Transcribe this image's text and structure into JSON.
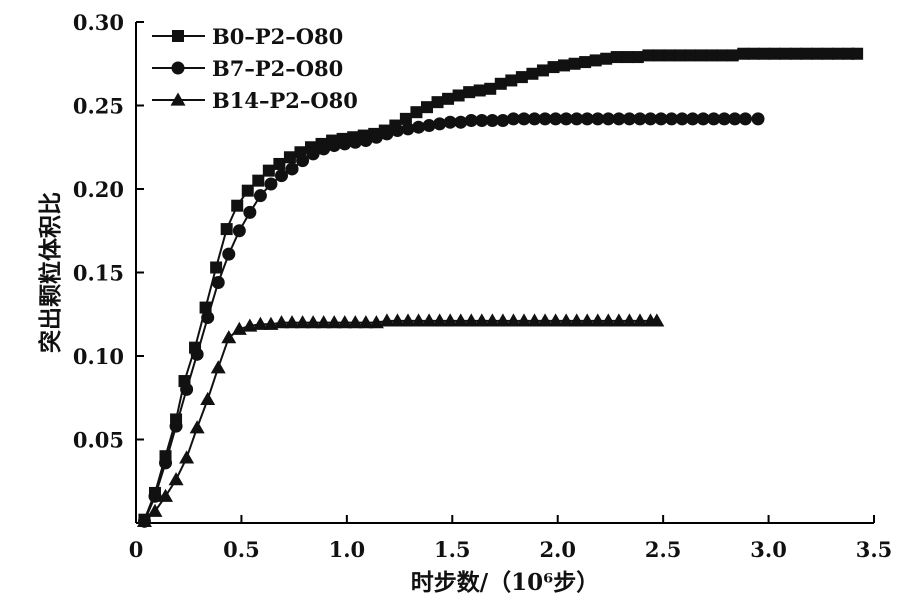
{
  "chart_data": {
    "type": "line",
    "xlabel": "时步数/（10⁶步）",
    "ylabel": "突出颗粒体积比",
    "xlim": [
      0,
      3.5
    ],
    "ylim": [
      0,
      0.3
    ],
    "xticks": [
      0,
      0.5,
      1.0,
      1.5,
      2.0,
      2.5,
      3.0,
      3.5
    ],
    "xtick_labels": [
      "0",
      "0.5",
      "1.0",
      "1.5",
      "2.0",
      "2.5",
      "3.0",
      "3.5"
    ],
    "yticks": [
      0.05,
      0.1,
      0.15,
      0.2,
      0.25,
      0.3
    ],
    "ytick_labels": [
      "0.05",
      "0.10",
      "0.15",
      "0.20",
      "0.25",
      "0.30"
    ],
    "grid": false,
    "legend_position": "top-left",
    "series": [
      {
        "name": "B0–P2–O80",
        "marker": "square",
        "x": [
          0.04,
          0.09,
          0.14,
          0.19,
          0.23,
          0.28,
          0.33,
          0.38,
          0.43,
          0.48,
          0.53,
          0.58,
          0.63,
          0.68,
          0.73,
          0.78,
          0.83,
          0.88,
          0.93,
          0.98,
          1.03,
          1.08,
          1.13,
          1.18,
          1.23,
          1.28,
          1.33,
          1.38,
          1.43,
          1.48,
          1.53,
          1.58,
          1.63,
          1.68,
          1.73,
          1.78,
          1.83,
          1.88,
          1.93,
          1.98,
          2.03,
          2.08,
          2.13,
          2.18,
          2.23,
          2.28,
          2.33,
          2.38,
          2.43,
          2.48,
          2.53,
          2.58,
          2.63,
          2.68,
          2.73,
          2.78,
          2.83,
          2.88,
          2.93,
          2.98,
          3.03,
          3.08,
          3.13,
          3.18,
          3.23,
          3.28,
          3.33,
          3.38,
          3.42
        ],
        "y": [
          0.002,
          0.018,
          0.04,
          0.062,
          0.085,
          0.105,
          0.129,
          0.153,
          0.176,
          0.19,
          0.199,
          0.205,
          0.211,
          0.215,
          0.219,
          0.222,
          0.225,
          0.227,
          0.229,
          0.23,
          0.231,
          0.232,
          0.233,
          0.235,
          0.238,
          0.242,
          0.246,
          0.249,
          0.252,
          0.254,
          0.256,
          0.258,
          0.259,
          0.26,
          0.263,
          0.265,
          0.267,
          0.269,
          0.271,
          0.273,
          0.274,
          0.275,
          0.276,
          0.277,
          0.278,
          0.279,
          0.279,
          0.279,
          0.28,
          0.28,
          0.28,
          0.28,
          0.28,
          0.28,
          0.28,
          0.28,
          0.28,
          0.281,
          0.281,
          0.281,
          0.281,
          0.281,
          0.281,
          0.281,
          0.281,
          0.281,
          0.281,
          0.281,
          0.281
        ]
      },
      {
        "name": "B7–P2–O80",
        "marker": "circle",
        "x": [
          0.04,
          0.09,
          0.14,
          0.19,
          0.24,
          0.29,
          0.34,
          0.39,
          0.44,
          0.49,
          0.54,
          0.59,
          0.64,
          0.69,
          0.74,
          0.79,
          0.84,
          0.89,
          0.94,
          0.99,
          1.04,
          1.09,
          1.14,
          1.19,
          1.24,
          1.29,
          1.34,
          1.39,
          1.44,
          1.49,
          1.54,
          1.59,
          1.64,
          1.69,
          1.74,
          1.79,
          1.84,
          1.89,
          1.94,
          1.99,
          2.04,
          2.09,
          2.14,
          2.19,
          2.24,
          2.29,
          2.34,
          2.39,
          2.44,
          2.49,
          2.54,
          2.59,
          2.64,
          2.69,
          2.74,
          2.79,
          2.84,
          2.89,
          2.95
        ],
        "y": [
          0.001,
          0.016,
          0.036,
          0.058,
          0.08,
          0.101,
          0.123,
          0.144,
          0.161,
          0.175,
          0.186,
          0.196,
          0.203,
          0.208,
          0.212,
          0.217,
          0.221,
          0.224,
          0.226,
          0.227,
          0.228,
          0.229,
          0.231,
          0.233,
          0.235,
          0.236,
          0.237,
          0.238,
          0.239,
          0.24,
          0.24,
          0.241,
          0.241,
          0.241,
          0.241,
          0.242,
          0.242,
          0.242,
          0.242,
          0.242,
          0.242,
          0.242,
          0.242,
          0.242,
          0.242,
          0.242,
          0.242,
          0.242,
          0.242,
          0.242,
          0.242,
          0.242,
          0.242,
          0.242,
          0.242,
          0.242,
          0.242,
          0.242,
          0.242
        ]
      },
      {
        "name": "B14–P2–O80",
        "marker": "triangle",
        "x": [
          0.04,
          0.09,
          0.14,
          0.19,
          0.24,
          0.29,
          0.34,
          0.39,
          0.44,
          0.49,
          0.54,
          0.59,
          0.64,
          0.69,
          0.74,
          0.79,
          0.84,
          0.89,
          0.94,
          0.99,
          1.04,
          1.09,
          1.14,
          1.19,
          1.24,
          1.29,
          1.34,
          1.39,
          1.44,
          1.49,
          1.54,
          1.59,
          1.64,
          1.69,
          1.74,
          1.79,
          1.84,
          1.89,
          1.94,
          1.99,
          2.04,
          2.09,
          2.14,
          2.19,
          2.24,
          2.29,
          2.34,
          2.39,
          2.44,
          2.47
        ],
        "y": [
          0.001,
          0.007,
          0.016,
          0.026,
          0.039,
          0.057,
          0.074,
          0.093,
          0.111,
          0.116,
          0.118,
          0.119,
          0.119,
          0.12,
          0.12,
          0.12,
          0.12,
          0.12,
          0.12,
          0.12,
          0.12,
          0.12,
          0.12,
          0.121,
          0.121,
          0.121,
          0.121,
          0.121,
          0.121,
          0.121,
          0.121,
          0.121,
          0.121,
          0.121,
          0.121,
          0.121,
          0.121,
          0.121,
          0.121,
          0.121,
          0.121,
          0.121,
          0.121,
          0.121,
          0.121,
          0.121,
          0.121,
          0.121,
          0.121,
          0.121
        ]
      }
    ]
  }
}
